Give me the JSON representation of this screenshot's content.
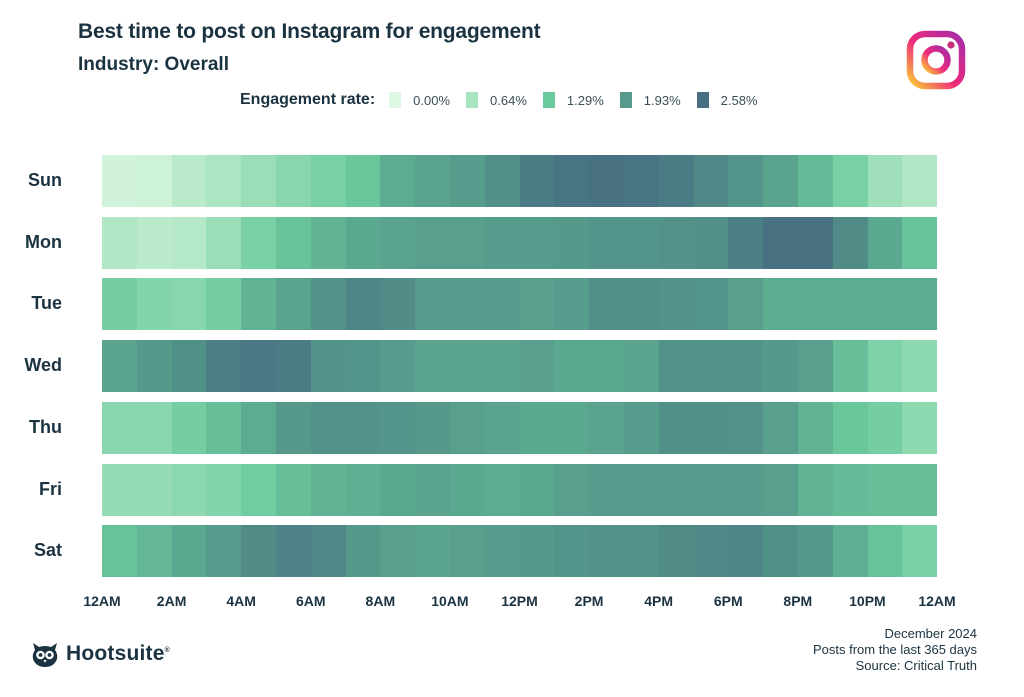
{
  "header": {
    "title": "Best time to post on Instagram for engagement",
    "subtitle": "Industry: Overall"
  },
  "logo": {
    "icon": "instagram-icon",
    "colors": [
      "#f9ce34",
      "#ee2a7b",
      "#6228d7"
    ]
  },
  "legend": {
    "title": "Engagement rate:",
    "items": [
      {
        "label": "0.00%",
        "value": 0.0,
        "color": "#dff8e3"
      },
      {
        "label": "0.64%",
        "value": 0.64,
        "color": "#a9e4c0"
      },
      {
        "label": "1.29%",
        "value": 1.29,
        "color": "#6ccb9d"
      },
      {
        "label": "1.93%",
        "value": 1.93,
        "color": "#559a8b"
      },
      {
        "label": "2.58%",
        "value": 2.58,
        "color": "#476f82"
      }
    ]
  },
  "chart_data": {
    "type": "heatmap",
    "title": "Best time to post on Instagram for engagement",
    "subtitle": "Industry: Overall",
    "xlabel": "",
    "ylabel": "",
    "value_label": "Engagement rate (%)",
    "value_range": [
      0.0,
      2.58
    ],
    "x_tick_labels": [
      "12AM",
      "2AM",
      "4AM",
      "6AM",
      "8AM",
      "10AM",
      "12PM",
      "2PM",
      "4PM",
      "6PM",
      "8PM",
      "10PM",
      "12AM"
    ],
    "hours": [
      "12AM",
      "1AM",
      "2AM",
      "3AM",
      "4AM",
      "5AM",
      "6AM",
      "7AM",
      "8AM",
      "9AM",
      "10AM",
      "11AM",
      "12PM",
      "1PM",
      "2PM",
      "3PM",
      "4PM",
      "5PM",
      "6PM",
      "7PM",
      "8PM",
      "9PM",
      "10PM",
      "11PM"
    ],
    "rows": [
      {
        "day": "Sun",
        "values": [
          0.15,
          0.2,
          0.45,
          0.6,
          0.8,
          1.0,
          1.15,
          1.35,
          1.7,
          1.8,
          1.9,
          2.1,
          2.4,
          2.5,
          2.55,
          2.5,
          2.4,
          2.2,
          2.0,
          1.8,
          1.5,
          1.15,
          0.75,
          0.55
        ]
      },
      {
        "day": "Mon",
        "values": [
          0.55,
          0.45,
          0.5,
          0.8,
          1.15,
          1.4,
          1.6,
          1.75,
          1.8,
          1.85,
          1.85,
          1.9,
          1.9,
          1.95,
          2.0,
          2.0,
          2.05,
          2.1,
          2.35,
          2.55,
          2.55,
          2.15,
          1.75,
          1.4
        ]
      },
      {
        "day": "Tue",
        "values": [
          1.2,
          1.05,
          1.0,
          1.2,
          1.6,
          1.8,
          2.05,
          2.25,
          2.15,
          1.9,
          1.9,
          1.9,
          1.85,
          1.9,
          2.1,
          2.1,
          2.05,
          2.0,
          1.85,
          1.7,
          1.7,
          1.7,
          1.7,
          1.7
        ]
      },
      {
        "day": "Wed",
        "values": [
          1.8,
          1.95,
          2.1,
          2.35,
          2.45,
          2.4,
          2.05,
          2.0,
          1.9,
          1.8,
          1.8,
          1.8,
          1.85,
          1.75,
          1.75,
          1.8,
          2.05,
          2.05,
          2.05,
          1.95,
          1.85,
          1.45,
          1.1,
          0.95
        ]
      },
      {
        "day": "Thu",
        "values": [
          1.0,
          1.0,
          1.2,
          1.45,
          1.7,
          1.95,
          2.05,
          2.05,
          2.0,
          1.95,
          1.85,
          1.8,
          1.75,
          1.75,
          1.8,
          1.9,
          2.1,
          2.1,
          2.05,
          1.85,
          1.6,
          1.35,
          1.2,
          0.95
        ]
      },
      {
        "day": "Fri",
        "values": [
          0.85,
          0.85,
          0.95,
          1.05,
          1.25,
          1.45,
          1.6,
          1.65,
          1.75,
          1.8,
          1.75,
          1.7,
          1.75,
          1.85,
          1.9,
          1.9,
          1.9,
          1.9,
          1.9,
          1.85,
          1.6,
          1.5,
          1.45,
          1.45
        ]
      },
      {
        "day": "Sat",
        "values": [
          1.4,
          1.55,
          1.75,
          1.9,
          2.15,
          2.3,
          2.2,
          1.95,
          1.85,
          1.8,
          1.85,
          1.9,
          1.95,
          2.0,
          2.05,
          2.05,
          2.15,
          2.2,
          2.25,
          2.1,
          1.95,
          1.65,
          1.4,
          1.15
        ]
      }
    ],
    "grid": false,
    "legend_position": "top"
  },
  "footer": {
    "brand": "Hootsuite",
    "brand_mark": "®",
    "notes": [
      "December 2024",
      "Posts from the last 365 days",
      "Source: Critical Truth"
    ]
  }
}
